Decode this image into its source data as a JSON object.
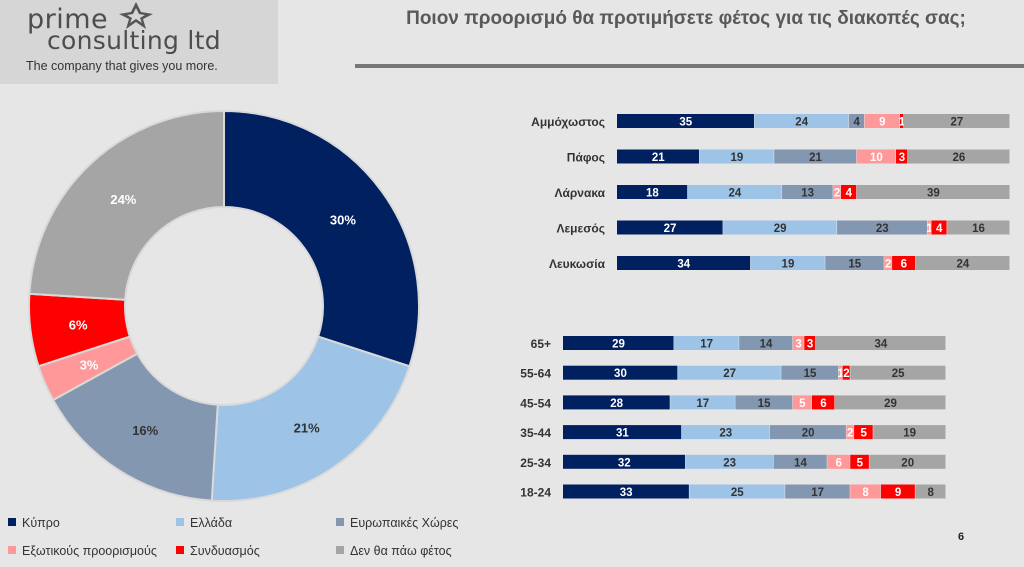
{
  "logo": {
    "line1": "prime",
    "line2": "consulting ltd",
    "tagline": "The company that gives you more."
  },
  "title": "Ποιον προορισμό θα προτιμήσετε φέτος για τις διακοπές σας;",
  "page_number": "6",
  "colors": {
    "cyprus": "#002060",
    "greece": "#9dc3e6",
    "europe": "#8497b0",
    "exotic": "#ff9999",
    "combination": "#ff0000",
    "not_going": "#a5a5a5"
  },
  "legend": [
    {
      "label": "Κύπρο",
      "color": "#002060"
    },
    {
      "label": "Ελλάδα",
      "color": "#9dc3e6"
    },
    {
      "label": "Ευρωπαικές Χώρες",
      "color": "#8497b0"
    },
    {
      "label": "Εξωτικούς προορισμούς",
      "color": "#ff9999"
    },
    {
      "label": "Συνδυασμός",
      "color": "#ff0000"
    },
    {
      "label": "Δεν θα πάω φέτος",
      "color": "#a5a5a5"
    }
  ],
  "chart_data": [
    {
      "type": "pie",
      "variant": "donut",
      "categories": [
        "Κύπρο",
        "Ελλάδα",
        "Ευρωπαικές Χώρες",
        "Εξωτικούς προορισμούς",
        "Συνδυασμός",
        "Δεν θα πάω φέτος"
      ],
      "values": [
        30,
        21,
        16,
        3,
        6,
        24
      ],
      "value_labels": [
        "30%",
        "21%",
        "16%",
        "3%",
        "6%",
        "24%"
      ],
      "colors": [
        "#002060",
        "#9dc3e6",
        "#8497b0",
        "#ff9999",
        "#ff0000",
        "#a5a5a5"
      ],
      "legend_position": "bottom"
    },
    {
      "type": "bar",
      "orientation": "horizontal",
      "stacked": "100%",
      "categories": [
        "Αμμόχωστος",
        "Πάφος",
        "Λάρνακα",
        "Λεμεσός",
        "Λευκωσία"
      ],
      "series": [
        {
          "name": "Κύπρο",
          "values": [
            35,
            21,
            18,
            27,
            34
          ]
        },
        {
          "name": "Ελλάδα",
          "values": [
            24,
            19,
            24,
            29,
            19
          ]
        },
        {
          "name": "Ευρωπαικές Χώρες",
          "values": [
            4,
            21,
            13,
            23,
            15
          ]
        },
        {
          "name": "Εξωτικούς προορισμούς",
          "values": [
            9,
            10,
            2,
            1,
            2
          ]
        },
        {
          "name": "Συνδυασμός",
          "values": [
            1,
            3,
            4,
            4,
            6
          ]
        },
        {
          "name": "Δεν θα πάω φέτος",
          "values": [
            27,
            26,
            39,
            16,
            24
          ]
        }
      ]
    },
    {
      "type": "bar",
      "orientation": "horizontal",
      "stacked": "100%",
      "categories": [
        "65+",
        "55-64",
        "45-54",
        "35-44",
        "25-34",
        "18-24"
      ],
      "series": [
        {
          "name": "Κύπρο",
          "values": [
            29,
            30,
            28,
            31,
            32,
            33
          ]
        },
        {
          "name": "Ελλάδα",
          "values": [
            17,
            27,
            17,
            23,
            23,
            25
          ]
        },
        {
          "name": "Ευρωπαικές Χώρες",
          "values": [
            14,
            15,
            15,
            20,
            14,
            17
          ]
        },
        {
          "name": "Εξωτικούς προορισμούς",
          "values": [
            3,
            1,
            5,
            2,
            6,
            8
          ]
        },
        {
          "name": "Συνδυασμός",
          "values": [
            3,
            2,
            6,
            5,
            5,
            9
          ]
        },
        {
          "name": "Δεν θα πάω φέτος",
          "values": [
            34,
            25,
            29,
            19,
            20,
            8
          ]
        }
      ]
    }
  ]
}
